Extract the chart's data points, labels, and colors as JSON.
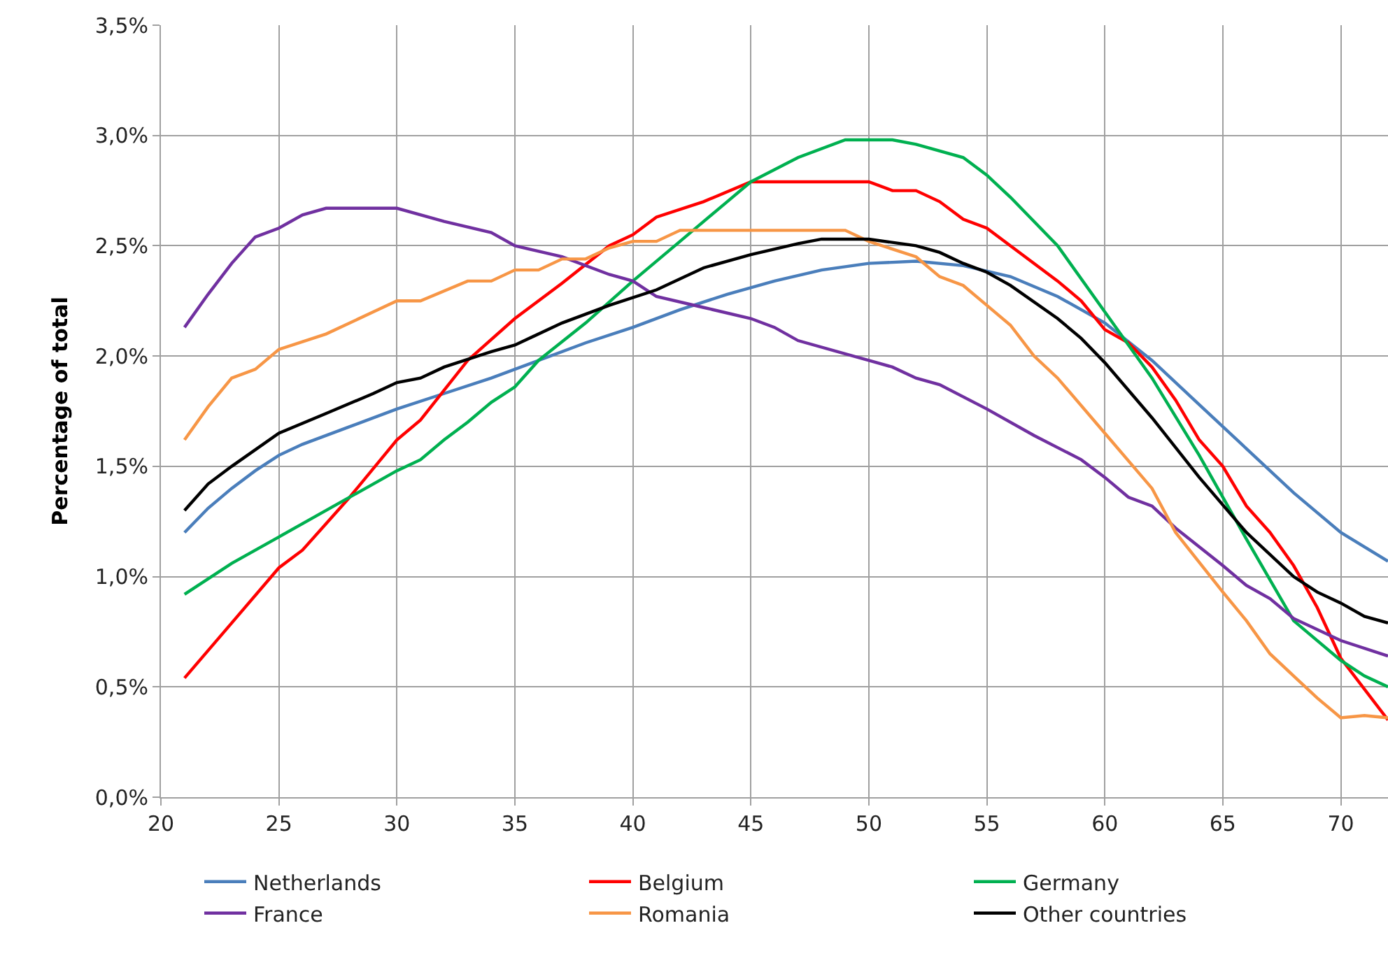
{
  "chart_data": {
    "type": "line",
    "ylabel": "Percentage of total",
    "xlim": [
      20,
      72
    ],
    "xticks": [
      20,
      25,
      30,
      35,
      40,
      45,
      50,
      55,
      60,
      65,
      70
    ],
    "ylim": [
      0,
      3.5
    ],
    "yticks": [
      {
        "value": 0,
        "label": "0,0%"
      },
      {
        "value": 0.5,
        "label": "0,5%"
      },
      {
        "value": 1,
        "label": "1,0%"
      },
      {
        "value": 1.5,
        "label": "1,5%"
      },
      {
        "value": 2,
        "label": "2,0%"
      },
      {
        "value": 2.5,
        "label": "2,5%"
      },
      {
        "value": 3,
        "label": "3,0%"
      },
      {
        "value": 3.5,
        "label": "3,5%"
      }
    ],
    "grid": true,
    "legend": "bottom",
    "marker": "none",
    "line_style": "solid",
    "series": [
      {
        "name": "Netherlands",
        "color": "#4a7ebb",
        "x": [
          21,
          22,
          23,
          24,
          25,
          26,
          28,
          30,
          32,
          34,
          36,
          38,
          40,
          42,
          44,
          46,
          48,
          50,
          52,
          54,
          56,
          58,
          60,
          62,
          64,
          66,
          68,
          70,
          72
        ],
        "values": [
          1.2,
          1.31,
          1.4,
          1.48,
          1.55,
          1.6,
          1.68,
          1.76,
          1.83,
          1.9,
          1.98,
          2.06,
          2.13,
          2.21,
          2.28,
          2.34,
          2.39,
          2.42,
          2.43,
          2.41,
          2.36,
          2.27,
          2.15,
          1.98,
          1.78,
          1.58,
          1.38,
          1.2,
          1.07
        ]
      },
      {
        "name": "Belgium",
        "color": "#ff0000",
        "x": [
          21,
          23,
          25,
          26,
          28,
          30,
          31,
          33,
          35,
          37,
          39,
          40,
          41,
          43,
          45,
          50,
          51,
          52,
          53,
          54,
          55,
          56,
          58,
          59,
          60,
          61,
          62,
          63,
          64,
          65,
          66,
          67,
          68,
          69,
          70,
          72
        ],
        "values": [
          0.54,
          0.79,
          1.04,
          1.12,
          1.36,
          1.62,
          1.71,
          1.98,
          2.17,
          2.33,
          2.5,
          2.55,
          2.63,
          2.7,
          2.79,
          2.79,
          2.75,
          2.75,
          2.7,
          2.62,
          2.58,
          2.5,
          2.34,
          2.25,
          2.12,
          2.06,
          1.95,
          1.8,
          1.62,
          1.5,
          1.32,
          1.2,
          1.05,
          0.86,
          0.63,
          0.35
        ]
      },
      {
        "name": "Germany",
        "color": "#00b050",
        "x": [
          21,
          23,
          25,
          27,
          29,
          30,
          31,
          32,
          33,
          34,
          35,
          36,
          38,
          40,
          42,
          44,
          45,
          47,
          49,
          51,
          52,
          54,
          55,
          56,
          58,
          60,
          62,
          64,
          66,
          68,
          70,
          71,
          72
        ],
        "values": [
          0.92,
          1.06,
          1.18,
          1.3,
          1.42,
          1.48,
          1.53,
          1.62,
          1.7,
          1.79,
          1.86,
          1.98,
          2.15,
          2.34,
          2.52,
          2.7,
          2.79,
          2.9,
          2.98,
          2.98,
          2.96,
          2.9,
          2.82,
          2.72,
          2.5,
          2.2,
          1.9,
          1.55,
          1.17,
          0.8,
          0.62,
          0.55,
          0.5
        ]
      },
      {
        "name": "France",
        "color": "#7030a0",
        "x": [
          21,
          22,
          23,
          24,
          25,
          26,
          27,
          30,
          32,
          34,
          35,
          37,
          39,
          40,
          41,
          43,
          45,
          46,
          47,
          50,
          51,
          52,
          53,
          55,
          57,
          59,
          60,
          61,
          62,
          63,
          65,
          66,
          67,
          68,
          70,
          72
        ],
        "values": [
          2.13,
          2.28,
          2.42,
          2.54,
          2.58,
          2.64,
          2.67,
          2.67,
          2.61,
          2.56,
          2.5,
          2.45,
          2.37,
          2.34,
          2.27,
          2.22,
          2.17,
          2.13,
          2.07,
          1.98,
          1.95,
          1.9,
          1.87,
          1.76,
          1.64,
          1.53,
          1.45,
          1.36,
          1.32,
          1.22,
          1.05,
          0.96,
          0.9,
          0.81,
          0.71,
          0.64
        ]
      },
      {
        "name": "Romania",
        "color": "#f79646",
        "x": [
          21,
          22,
          23,
          24,
          25,
          27,
          29,
          30,
          31,
          33,
          34,
          35,
          36,
          37,
          38,
          39,
          40,
          41,
          42,
          49,
          50,
          52,
          53,
          54,
          55,
          56,
          57,
          58,
          60,
          62,
          63,
          65,
          66,
          67,
          68,
          69,
          70,
          71,
          72
        ],
        "values": [
          1.62,
          1.77,
          1.9,
          1.94,
          2.03,
          2.1,
          2.2,
          2.25,
          2.25,
          2.34,
          2.34,
          2.39,
          2.39,
          2.44,
          2.44,
          2.49,
          2.52,
          2.52,
          2.57,
          2.57,
          2.52,
          2.45,
          2.36,
          2.32,
          2.23,
          2.14,
          2.0,
          1.9,
          1.65,
          1.4,
          1.2,
          0.93,
          0.8,
          0.65,
          0.55,
          0.45,
          0.36,
          0.37,
          0.36
        ]
      },
      {
        "name": "Other countries",
        "color": "#000000",
        "x": [
          21,
          22,
          23,
          25,
          27,
          29,
          30,
          31,
          32,
          34,
          35,
          37,
          39,
          41,
          43,
          45,
          47,
          48,
          50,
          52,
          53,
          54,
          55,
          56,
          58,
          59,
          60,
          62,
          64,
          66,
          68,
          69,
          70,
          71,
          72
        ],
        "values": [
          1.3,
          1.42,
          1.5,
          1.65,
          1.74,
          1.83,
          1.88,
          1.9,
          1.95,
          2.02,
          2.05,
          2.15,
          2.23,
          2.3,
          2.4,
          2.46,
          2.51,
          2.53,
          2.53,
          2.5,
          2.47,
          2.42,
          2.38,
          2.32,
          2.17,
          2.08,
          1.97,
          1.72,
          1.45,
          1.2,
          1.0,
          0.93,
          0.88,
          0.82,
          0.79
        ]
      }
    ]
  }
}
